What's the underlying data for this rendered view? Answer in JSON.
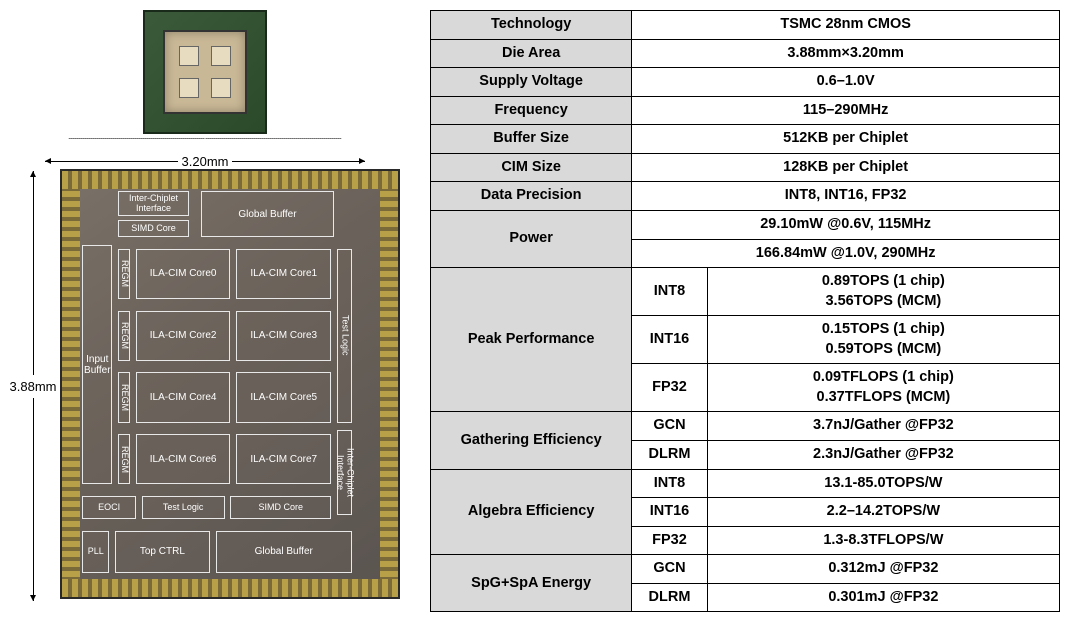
{
  "dimensions": {
    "width_label": "3.20mm",
    "height_label": "3.88mm"
  },
  "die_blocks": {
    "inter_chiplet_top": "Inter-Chiplet\nInterface",
    "simd_top": "SIMD Core",
    "global_buffer_top": "Global Buffer",
    "input_buffer": "Input\nBuffer",
    "regm": "REGM",
    "ila0": "ILA-CIM Core0",
    "ila1": "ILA-CIM Core1",
    "ila2": "ILA-CIM Core2",
    "ila3": "ILA-CIM Core3",
    "ila4": "ILA-CIM Core4",
    "ila5": "ILA-CIM Core5",
    "ila6": "ILA-CIM Core6",
    "ila7": "ILA-CIM Core7",
    "test_logic_r": "Test Logic",
    "inter_chiplet_r": "Inter-Chiplet\nInterface",
    "eoci": "EOCI",
    "test_logic_b": "Test Logic",
    "simd_b": "SIMD Core",
    "pll": "PLL",
    "top_ctrl": "Top CTRL",
    "global_buffer_b": "Global Buffer"
  },
  "spec": {
    "rows": [
      {
        "label": "Technology",
        "value": "TSMC 28nm CMOS"
      },
      {
        "label": "Die Area",
        "value": "3.88mm×3.20mm"
      },
      {
        "label": "Supply Voltage",
        "value": "0.6–1.0V"
      },
      {
        "label": "Frequency",
        "value": "115–290MHz"
      },
      {
        "label": "Buffer Size",
        "value": "512KB per Chiplet"
      },
      {
        "label": "CIM Size",
        "value": "128KB per Chiplet"
      },
      {
        "label": "Data Precision",
        "value": "INT8, INT16, FP32"
      }
    ],
    "power": {
      "label": "Power",
      "values": [
        "29.10mW @0.6V, 115MHz",
        "166.84mW @1.0V, 290MHz"
      ]
    },
    "peak_perf": {
      "label": "Peak Performance",
      "rows": [
        {
          "sub": "INT8",
          "value": "0.89TOPS (1 chip)\n3.56TOPS (MCM)"
        },
        {
          "sub": "INT16",
          "value": "0.15TOPS (1 chip)\n0.59TOPS (MCM)"
        },
        {
          "sub": "FP32",
          "value": "0.09TFLOPS (1 chip)\n0.37TFLOPS (MCM)"
        }
      ]
    },
    "gather_eff": {
      "label": "Gathering Efficiency",
      "rows": [
        {
          "sub": "GCN",
          "value": "3.7nJ/Gather @FP32"
        },
        {
          "sub": "DLRM",
          "value": "2.3nJ/Gather @FP32"
        }
      ]
    },
    "algebra_eff": {
      "label": "Algebra Efficiency",
      "rows": [
        {
          "sub": "INT8",
          "value": "13.1-85.0TOPS/W"
        },
        {
          "sub": "INT16",
          "value": "2.2–14.2TOPS/W"
        },
        {
          "sub": "FP32",
          "value": "1.3-8.3TFLOPS/W"
        }
      ]
    },
    "spg_spa": {
      "label": "SpG+SpA Energy",
      "rows": [
        {
          "sub": "GCN",
          "value": "0.312mJ @FP32"
        },
        {
          "sub": "DLRM",
          "value": "0.301mJ @FP32"
        }
      ]
    }
  },
  "colors": {
    "header_bg": "#d9d9d9",
    "border": "#000000",
    "text": "#000000",
    "die_border": "#e8e8e8"
  }
}
